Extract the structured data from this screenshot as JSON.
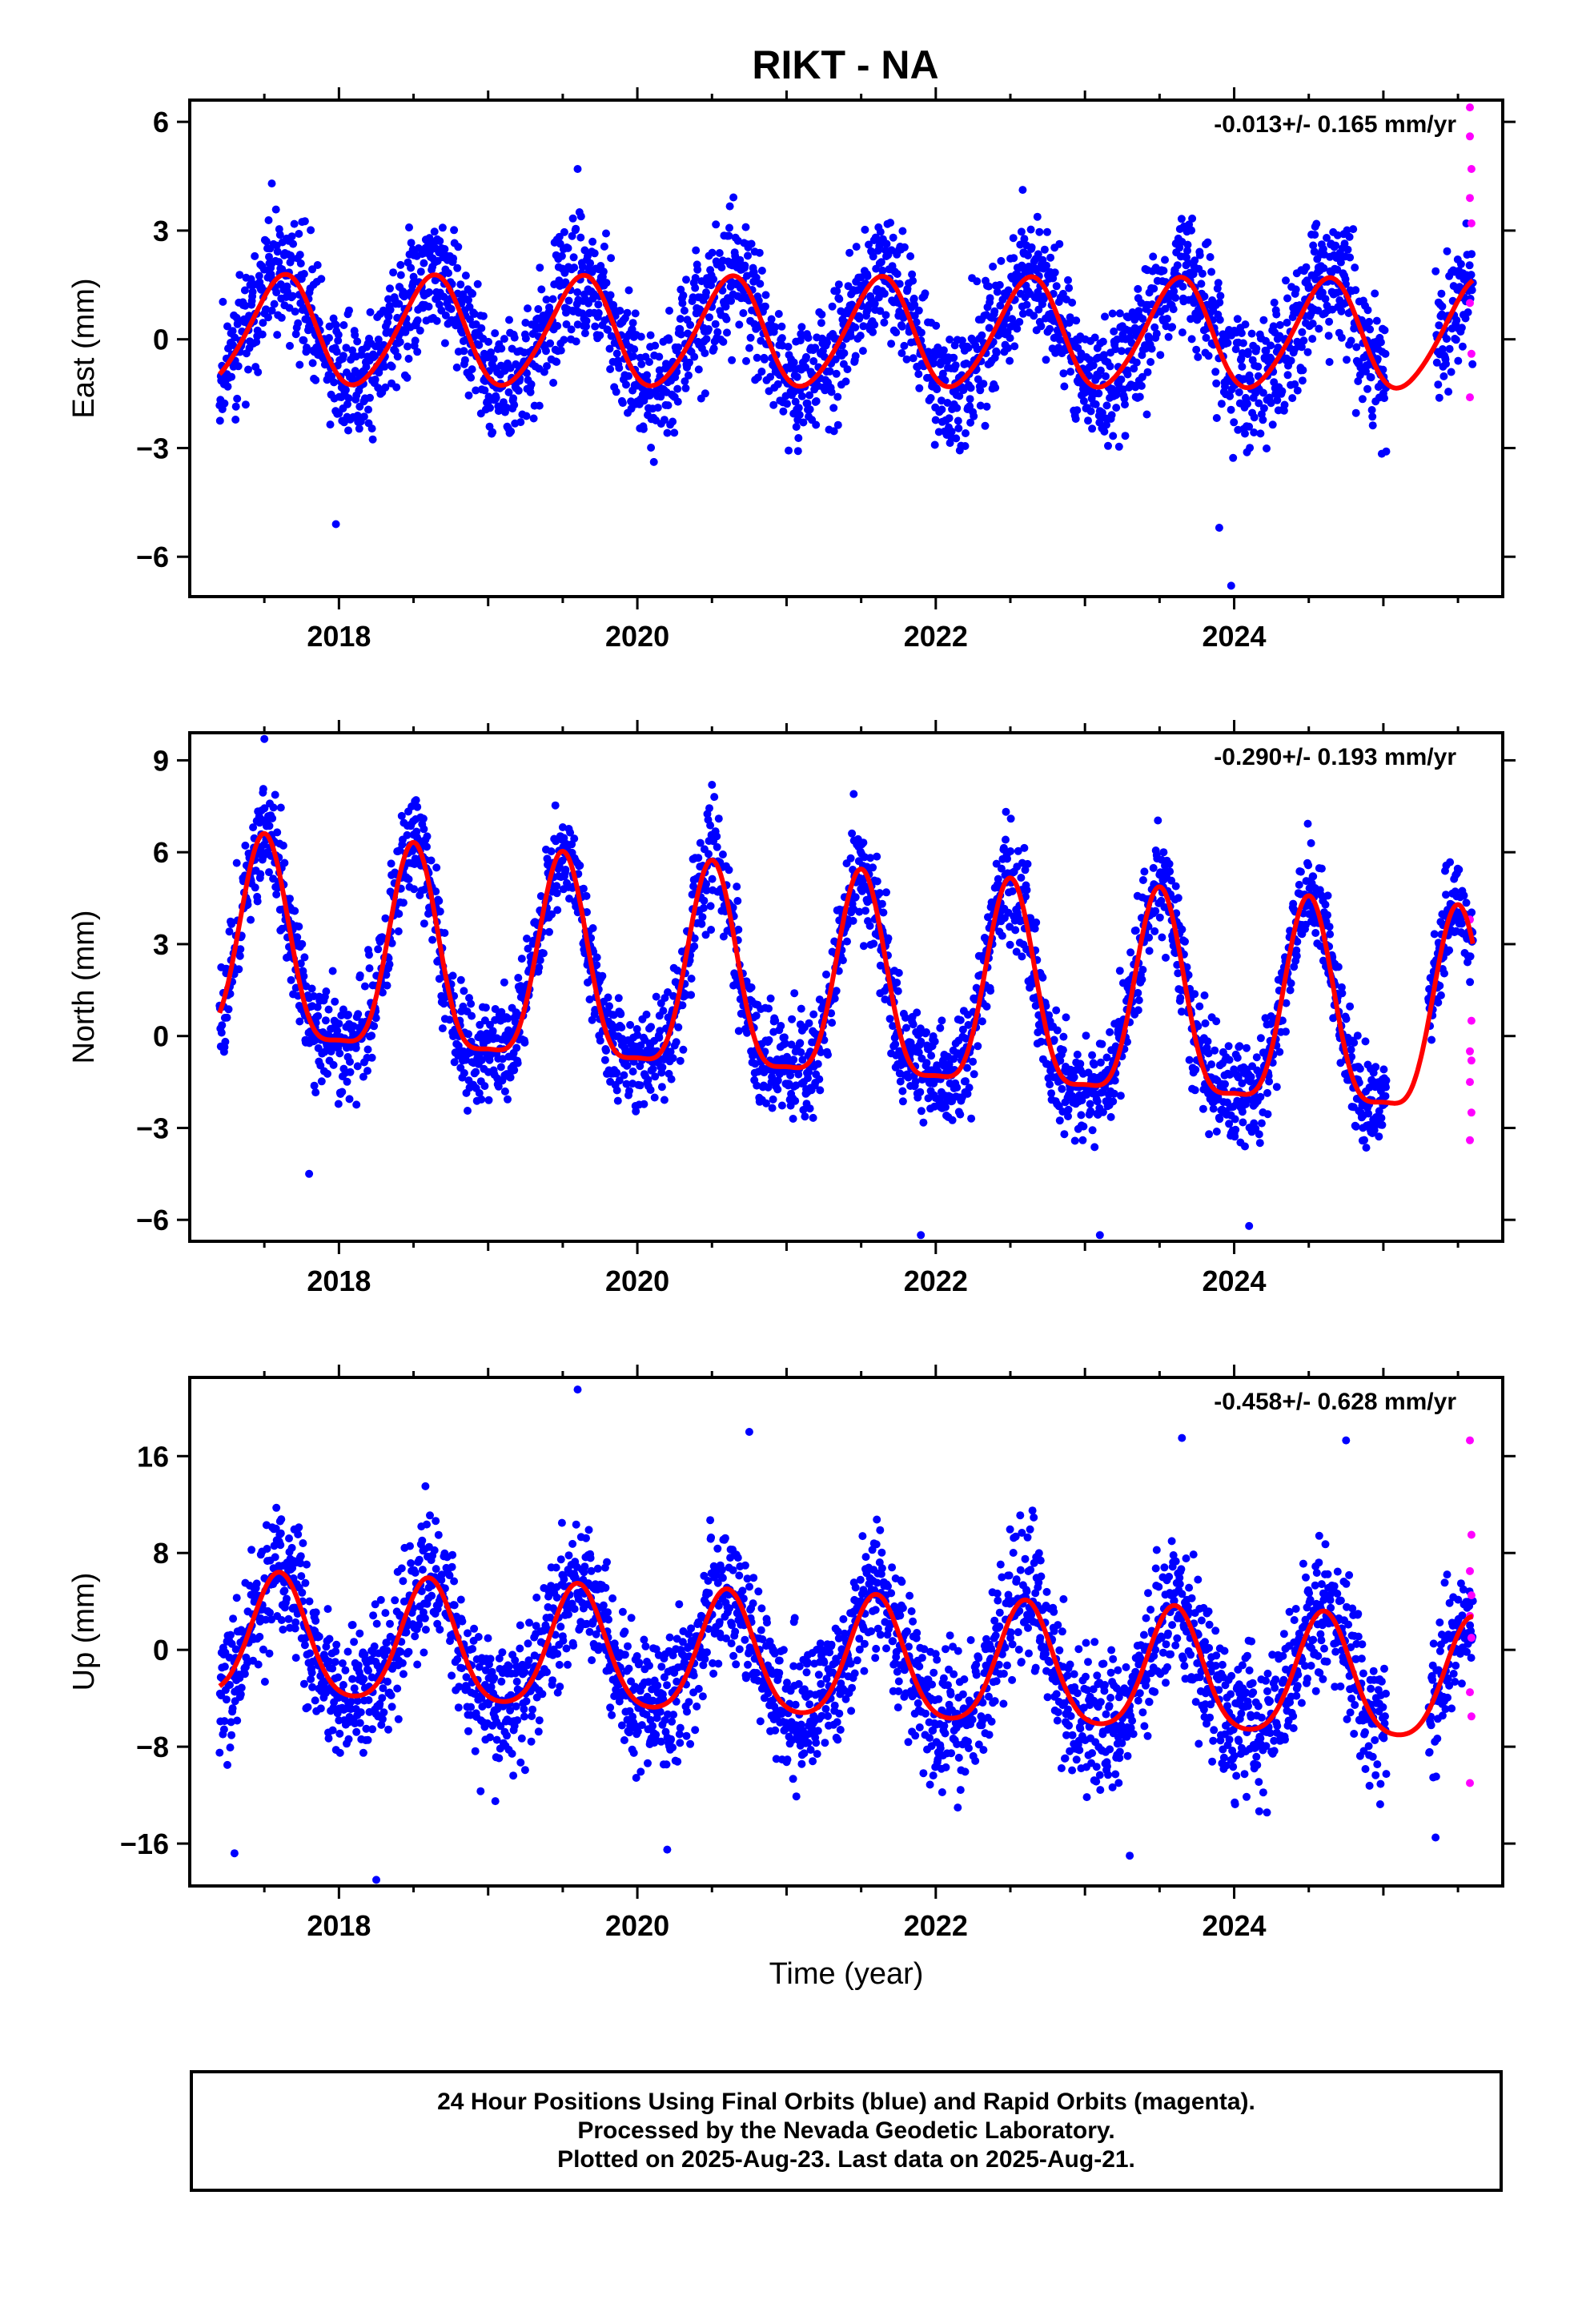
{
  "title": "RIKT - NA",
  "footer": {
    "line1": "24 Hour Positions Using Final Orbits (blue) and Rapid Orbits (magenta).",
    "line2": "Processed by the Nevada Geodetic Laboratory.",
    "line3": "Plotted on 2025-Aug-23. Last data on 2025-Aug-21."
  },
  "colors": {
    "final": "#0000ff",
    "rapid": "#ff00ff",
    "model": "#ff0000"
  },
  "chart_data": [
    {
      "type": "scatter",
      "ylabel": "East (mm)",
      "xlabel": "",
      "rate": "-0.013+/- 0.165 mm/yr",
      "xlim": [
        2017.0,
        2025.8
      ],
      "ylim": [
        -7.1,
        6.6
      ],
      "xticks": [
        2018,
        2020,
        2022,
        2024
      ],
      "yticks": [
        -6,
        -3,
        0,
        3,
        6
      ],
      "yticklabels": [
        "−6",
        "−3",
        "0",
        "3",
        "6"
      ],
      "grid": false,
      "model": {
        "amp_annual": 1.5,
        "peak": 0.62,
        "amp_semiannual": 0.15,
        "phase_semiannual": 0.2,
        "offset": 0.2,
        "trend": -0.013,
        "scatter": 1.0,
        "seed": 11,
        "outliers": [
          [
            2017.98,
            -5.1
          ],
          [
            2023.9,
            -5.2
          ],
          [
            2023.98,
            -6.8
          ],
          [
            2019.6,
            4.7
          ],
          [
            2017.55,
            4.3
          ]
        ]
      },
      "rapid_points": [
        [
          2025.58,
          6.4
        ],
        [
          2025.58,
          5.6
        ],
        [
          2025.59,
          4.7
        ],
        [
          2025.58,
          3.9
        ],
        [
          2025.59,
          3.2
        ],
        [
          2025.58,
          1.0
        ],
        [
          2025.59,
          -0.4
        ],
        [
          2025.58,
          -1.6
        ]
      ],
      "x_range": [
        2017.2,
        2025.6
      ],
      "gaps": [
        [
          2025.02,
          2025.35
        ]
      ]
    },
    {
      "type": "scatter",
      "ylabel": "North (mm)",
      "xlabel": "",
      "rate": "-0.290+/- 0.193 mm/yr",
      "xlim": [
        2017.0,
        2025.8
      ],
      "ylim": [
        -6.7,
        9.9
      ],
      "xticks": [
        2018,
        2020,
        2022,
        2024
      ],
      "yticks": [
        -6,
        -3,
        0,
        3,
        6,
        9
      ],
      "yticklabels": [
        "−6",
        "−3",
        "0",
        "3",
        "6",
        "9"
      ],
      "grid": false,
      "model": {
        "amp_annual": 3.3,
        "peak": 0.5,
        "amp_semiannual": 0.9,
        "phase_semiannual": 0.0,
        "offset": 2.5,
        "trend": -0.29,
        "scatter": 1.0,
        "seed": 23,
        "outliers": [
          [
            2017.5,
            9.7
          ],
          [
            2017.8,
            -4.5
          ],
          [
            2020.5,
            8.2
          ],
          [
            2021.45,
            7.9
          ],
          [
            2021.9,
            -6.5
          ],
          [
            2023.1,
            -6.5
          ],
          [
            2024.1,
            -6.2
          ]
        ]
      },
      "rapid_points": [
        [
          2025.58,
          3.8
        ],
        [
          2025.59,
          0.5
        ],
        [
          2025.58,
          -0.5
        ],
        [
          2025.59,
          -0.8
        ],
        [
          2025.58,
          -1.5
        ],
        [
          2025.59,
          -2.5
        ],
        [
          2025.58,
          -3.4
        ]
      ],
      "x_range": [
        2017.2,
        2025.6
      ],
      "gaps": [
        [
          2025.02,
          2025.3
        ]
      ]
    },
    {
      "type": "scatter",
      "ylabel": "Up (mm)",
      "xlabel": "Time (year)",
      "rate": "-0.458+/- 0.628 mm/yr",
      "xlim": [
        2017.0,
        2025.8
      ],
      "ylim": [
        -19.5,
        22.5
      ],
      "xticks": [
        2018,
        2020,
        2022,
        2024
      ],
      "yticks": [
        -16,
        -8,
        0,
        8,
        16
      ],
      "yticklabels": [
        "−16",
        "−8",
        "0",
        "8",
        "16"
      ],
      "grid": false,
      "model": {
        "amp_annual": 5.0,
        "peak": 0.6,
        "amp_semiannual": 0.8,
        "phase_semiannual": 0.1,
        "offset": 0.8,
        "trend": -0.458,
        "scatter": 3.3,
        "seed": 37,
        "outliers": [
          [
            2019.6,
            21.5
          ],
          [
            2017.3,
            -16.8
          ],
          [
            2018.25,
            -19.0
          ],
          [
            2020.2,
            -16.5
          ],
          [
            2020.75,
            18.0
          ],
          [
            2023.3,
            -17.0
          ],
          [
            2023.65,
            17.5
          ],
          [
            2024.75,
            17.3
          ],
          [
            2025.35,
            -15.5
          ]
        ]
      },
      "rapid_points": [
        [
          2025.58,
          17.3
        ],
        [
          2025.59,
          9.5
        ],
        [
          2025.58,
          6.5
        ],
        [
          2025.59,
          4.5
        ],
        [
          2025.58,
          2.8
        ],
        [
          2025.59,
          1.0
        ],
        [
          2025.58,
          -3.5
        ],
        [
          2025.59,
          -5.5
        ],
        [
          2025.58,
          -11.0
        ]
      ],
      "x_range": [
        2017.2,
        2025.6
      ],
      "gaps": [
        [
          2025.02,
          2025.3
        ]
      ]
    }
  ]
}
